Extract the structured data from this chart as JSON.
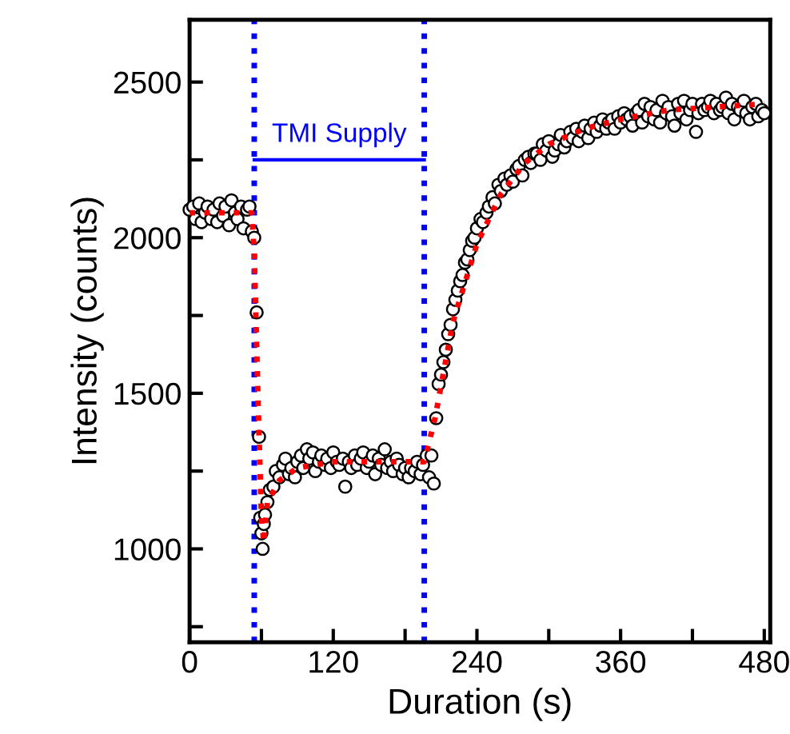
{
  "chart_data": {
    "type": "scatter",
    "xlabel": "Duration (s)",
    "ylabel": "Intensity (counts)",
    "xlim": [
      0,
      485
    ],
    "ylim": [
      700,
      2700
    ],
    "xticks": [
      0,
      {
        "value": 60,
        "label": null
      },
      120,
      {
        "value": 180,
        "label": null
      },
      240,
      {
        "value": 300,
        "label": null
      },
      360,
      {
        "value": 420,
        "label": null
      },
      480
    ],
    "yticks": [
      {
        "value": 750,
        "label": null
      },
      1000,
      {
        "value": 1250,
        "label": null
      },
      1500,
      {
        "value": 1750,
        "label": null
      },
      2000,
      {
        "value": 2250,
        "label": null
      },
      2500
    ],
    "grid": false,
    "legend": false,
    "ref_lines": [
      {
        "axis": "x",
        "value": 54,
        "color": "#0000ff",
        "line_style": "dotted"
      },
      {
        "axis": "x",
        "value": 196,
        "color": "#0000ff",
        "line_style": "dotted"
      }
    ],
    "annotations": [
      "TMI Supply"
    ],
    "series": [
      {
        "color": "#000000",
        "marker": "circle",
        "x": [
          0,
          3,
          5,
          8,
          10,
          13,
          15,
          18,
          20,
          23,
          25,
          28,
          30,
          33,
          35,
          38,
          40,
          43,
          45,
          48,
          50,
          52,
          54,
          56,
          58,
          59,
          60,
          61,
          62,
          63,
          65,
          67,
          70,
          72,
          75,
          78,
          80,
          83,
          85,
          88,
          90,
          93,
          95,
          98,
          100,
          103,
          105,
          108,
          110,
          113,
          115,
          118,
          120,
          123,
          125,
          128,
          130,
          133,
          135,
          138,
          140,
          143,
          145,
          148,
          150,
          153,
          155,
          158,
          160,
          163,
          165,
          168,
          170,
          173,
          175,
          178,
          180,
          183,
          185,
          188,
          190,
          193,
          195,
          198,
          200,
          202,
          204,
          206,
          208,
          210,
          212,
          214,
          216,
          218,
          220,
          222,
          224,
          226,
          228,
          230,
          232,
          234,
          236,
          238,
          240,
          243,
          245,
          248,
          250,
          253,
          255,
          258,
          260,
          263,
          265,
          268,
          270,
          273,
          275,
          278,
          280,
          283,
          285,
          288,
          290,
          293,
          295,
          298,
          300,
          303,
          305,
          308,
          310,
          313,
          315,
          318,
          320,
          323,
          325,
          328,
          330,
          333,
          335,
          338,
          340,
          343,
          345,
          348,
          350,
          353,
          355,
          358,
          360,
          363,
          365,
          368,
          370,
          373,
          375,
          378,
          380,
          383,
          385,
          388,
          390,
          393,
          395,
          398,
          400,
          403,
          405,
          408,
          410,
          413,
          415,
          418,
          420,
          423,
          425,
          428,
          430,
          433,
          435,
          438,
          440,
          443,
          445,
          448,
          450,
          453,
          455,
          458,
          460,
          463,
          465,
          468,
          470,
          473,
          475,
          478,
          480
        ],
        "values": [
          2090,
          2100,
          2060,
          2110,
          2050,
          2080,
          2100,
          2060,
          2090,
          2050,
          2110,
          2070,
          2100,
          2040,
          2120,
          2080,
          2060,
          2100,
          2030,
          2090,
          2100,
          2020,
          2000,
          1760,
          1360,
          1100,
          1050,
          1000,
          1080,
          1110,
          1150,
          1190,
          1200,
          1250,
          1230,
          1270,
          1290,
          1240,
          1260,
          1230,
          1280,
          1300,
          1260,
          1320,
          1290,
          1310,
          1250,
          1280,
          1300,
          1270,
          1290,
          1260,
          1310,
          1280,
          1270,
          1290,
          1200,
          1280,
          1260,
          1300,
          1270,
          1290,
          1310,
          1260,
          1280,
          1300,
          1240,
          1290,
          1270,
          1320,
          1260,
          1280,
          1250,
          1290,
          1270,
          1240,
          1260,
          1230,
          1260,
          1250,
          1280,
          1240,
          1270,
          1300,
          1230,
          1300,
          1210,
          1420,
          1530,
          1560,
          1600,
          1640,
          1690,
          1720,
          1770,
          1800,
          1830,
          1860,
          1880,
          1920,
          1930,
          1960,
          1990,
          2000,
          2030,
          2060,
          2050,
          2080,
          2100,
          2130,
          2110,
          2170,
          2150,
          2190,
          2170,
          2200,
          2180,
          2220,
          2230,
          2200,
          2250,
          2260,
          2240,
          2270,
          2270,
          2250,
          2300,
          2280,
          2310,
          2260,
          2280,
          2300,
          2330,
          2290,
          2310,
          2340,
          2320,
          2350,
          2310,
          2340,
          2360,
          2320,
          2350,
          2370,
          2340,
          2360,
          2380,
          2350,
          2370,
          2380,
          2350,
          2390,
          2370,
          2400,
          2380,
          2390,
          2360,
          2400,
          2410,
          2370,
          2430,
          2390,
          2420,
          2380,
          2410,
          2370,
          2440,
          2400,
          2420,
          2390,
          2360,
          2430,
          2400,
          2440,
          2380,
          2410,
          2430,
          2340,
          2400,
          2430,
          2410,
          2420,
          2440,
          2400,
          2430,
          2410,
          2420,
          2450,
          2400,
          2430,
          2380,
          2420,
          2410,
          2440,
          2400,
          2380,
          2420,
          2430,
          2390,
          2410,
          2400
        ]
      },
      {
        "type": "line",
        "color": "#ff0000",
        "line_style": "dotted",
        "x": [
          0,
          52,
          54,
          57,
          60,
          62,
          65,
          75,
          90,
          120,
          196,
          205,
          220,
          240,
          260,
          280,
          300,
          330,
          360,
          400,
          440,
          480
        ],
        "values": [
          2080,
          2080,
          1950,
          1500,
          1100,
          1020,
          1150,
          1220,
          1260,
          1280,
          1280,
          1420,
          1730,
          1980,
          2140,
          2240,
          2300,
          2350,
          2380,
          2410,
          2420,
          2430
        ]
      }
    ]
  }
}
